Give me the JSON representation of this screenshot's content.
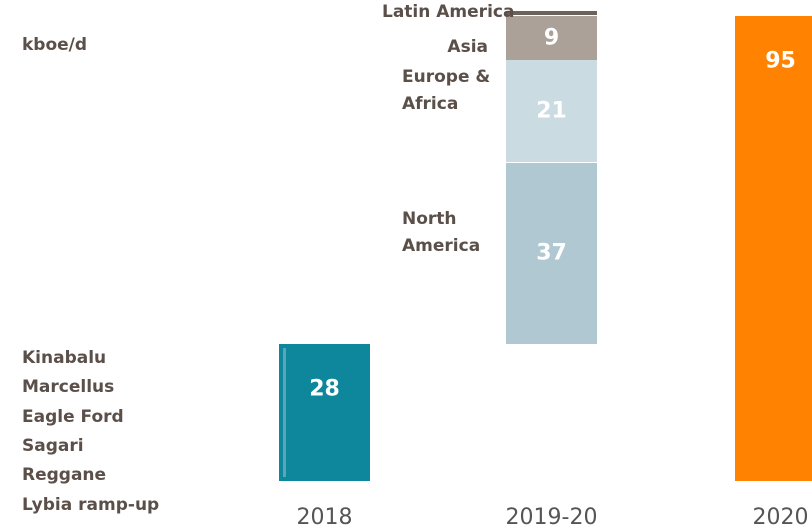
{
  "chart_data": {
    "type": "waterfall",
    "unit": "kboe/d",
    "categories": [
      "2018",
      "2019-20",
      "2020"
    ],
    "segments": [
      {
        "category": 0,
        "names": [
          "Kinabalu",
          "Marcellus",
          "Eagle Ford",
          "Sagari",
          "Reggane",
          "Lybia ramp-up"
        ],
        "value": 28,
        "color": "#0e869b"
      },
      {
        "category": 1,
        "name": "North America",
        "value": 37,
        "color": "#b0c8d2"
      },
      {
        "category": 1,
        "name": "Europe & Africa",
        "value": 21,
        "color": "#cadbe2"
      },
      {
        "category": 1,
        "name": "Asia",
        "value": 9,
        "color": "#aca199"
      },
      {
        "category": 1,
        "name": "Latin America",
        "value": 1,
        "color": "#6b625c"
      },
      {
        "category": 2,
        "value": 95,
        "color": "#ff8200",
        "total": true
      }
    ]
  }
}
